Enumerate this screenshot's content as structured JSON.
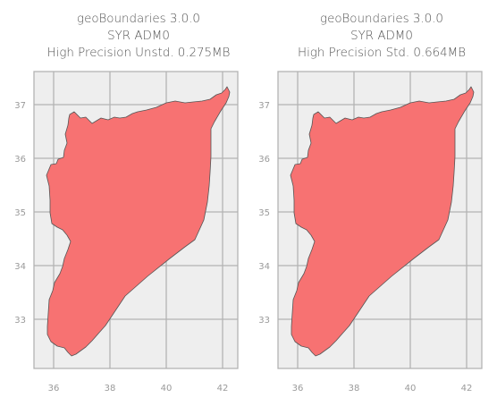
{
  "panels": [
    {
      "title_lines": [
        "geoBoundaries 3.0.0",
        "SYR ADM0",
        "High Precision Unstd. 0.275MB"
      ],
      "x_ticks": [
        "36",
        "38",
        "40",
        "42"
      ],
      "y_ticks": [
        "37",
        "36",
        "35",
        "34",
        "33"
      ]
    },
    {
      "title_lines": [
        "geoBoundaries 3.0.0",
        "SYR ADM0",
        "High Precision Std. 0.664MB"
      ],
      "x_ticks": [
        "36",
        "38",
        "40",
        "42"
      ],
      "y_ticks": [
        "37",
        "36",
        "35",
        "34",
        "33"
      ]
    }
  ],
  "colors": {
    "plot_background": "#eeeeee",
    "grid": "#b3b3b3",
    "frame": "#b3b3b3",
    "country_fill": "#f77272",
    "country_edge": "#555555",
    "tick_label": "#9a9a9a",
    "title": "#555555"
  },
  "map": {
    "country": "Syria",
    "admin_level": "ADM0",
    "x_axis": "longitude",
    "y_axis": "latitude",
    "grid": true
  }
}
